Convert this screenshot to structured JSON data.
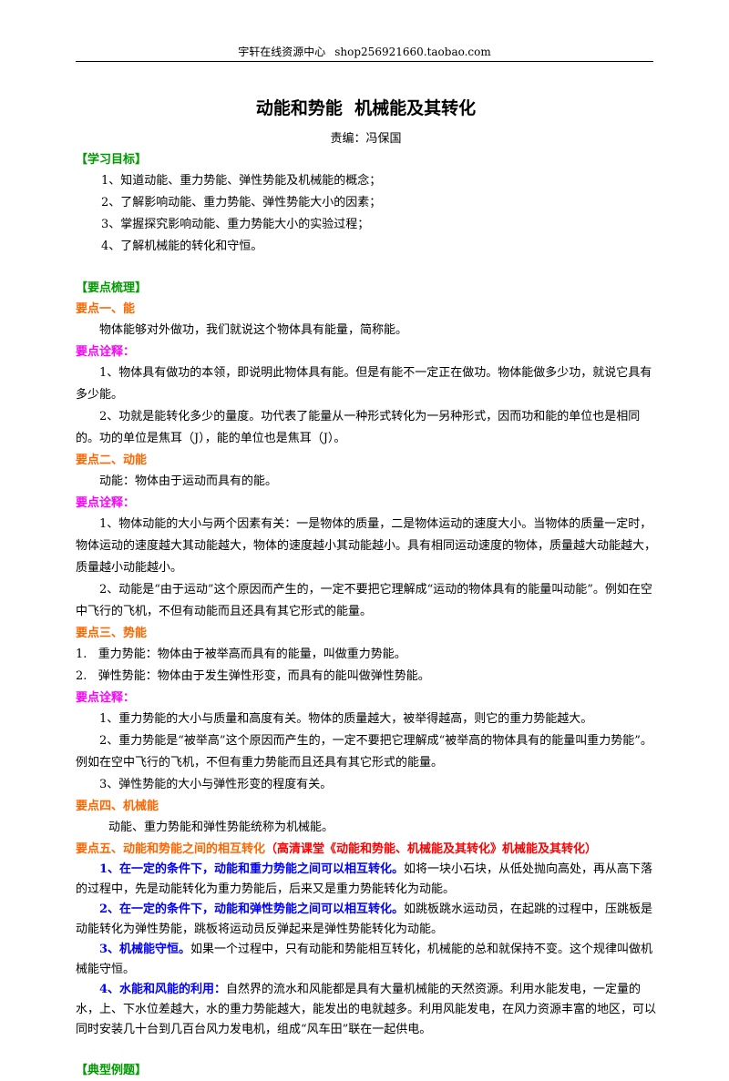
{
  "header": {
    "site": "宇轩在线资源中心",
    "shop": "shop256921660.taobao.com"
  },
  "title": "动能和势能  机械能及其转化",
  "editor": "责编：冯保国",
  "goals": {
    "heading": "【学习目标】",
    "items": [
      "1、知道动能、重力势能、弹性势能及机械能的概念；",
      "2、了解影响动能、重力势能、弹性势能大小的因素；",
      "3、掌握探究影响动能、重力势能大小的实验过程；",
      "4、了解机械能的转化和守恒。"
    ]
  },
  "summary_heading": "【要点梳理】",
  "p1": {
    "heading": "要点一、能",
    "text": "物体能够对外做功，我们就说这个物体具有能量，简称能。",
    "note_label": "要点诠释：",
    "notes": [
      "1、物体具有做功的本领，即说明此物体具有能。但是有能不一定正在做功。物体能做多少功，就说它具有多少能。",
      "2、功就是能转化多少的量度。功代表了能量从一种形式转化为一另种形式，因而功和能的单位也是相同的。功的单位是焦耳（J），能的单位也是焦耳（J）。"
    ]
  },
  "p2": {
    "heading": "要点二、动能",
    "text": "动能：物体由于运动而具有的能。",
    "note_label": "要点诠释：",
    "notes": [
      "1、物体动能的大小与两个因素有关：一是物体的质量，二是物体运动的速度大小。当物体的质量一定时，物体运动的速度越大其动能越大，物体的速度越小其动能越小。具有相同运动速度的物体，质量越大动能越大，质量越小动能越小。",
      "2、动能是“由于运动”这个原因而产生的，一定不要把它理解成“运动的物体具有的能量叫动能”。例如在空中飞行的飞机，不但有动能而且还具有其它形式的能量。"
    ]
  },
  "p3": {
    "heading": "要点三、势能",
    "defs": [
      "1.   重力势能：物体由于被举高而具有的能量，叫做重力势能。",
      "2.   弹性势能：物体由于发生弹性形变，而具有的能叫做弹性势能。"
    ],
    "note_label": "要点诠释：",
    "notes": [
      "1、重力势能的大小与质量和高度有关。物体的质量越大，被举得越高，则它的重力势能越大。",
      "2、重力势能是“被举高”这个原因而产生的，一定不要把它理解成“被举高的物体具有的能量叫重力势能”。例如在空中飞行的飞机，不但有重力势能而且还具有其它形式的能量。",
      "3、弹性势能的大小与弹性形变的程度有关。"
    ]
  },
  "p4": {
    "heading": "要点四、机械能",
    "text": "动能、重力势能和弹性势能统称为机械能。"
  },
  "p5": {
    "heading": "要点五、动能和势能之间的相互转化",
    "link": "（高清课堂《动能和势能、机械能及其转化》机械能及其转化）",
    "items": [
      {
        "bold": "1、在一定的条件下，动能和重力势能之间可以相互转化。",
        "text": "如将一块小石块，从低处抛向高处，再从高下落的过程中，先是动能转化为重力势能后，后来又是重力势能转化为动能。"
      },
      {
        "bold": "2、在一定的条件下，动能和弹性势能之间可以相互转化。",
        "text": "如跳板跳水运动员，在起跳的过程中，压跳板是动能转化为弹性势能，跳板将运动员反弹起来是弹性势能转化为动能。"
      },
      {
        "bold": "3、机械能守恒。",
        "text": "如果一个过程中，只有动能和势能相互转化，机械能的总和就保持不变。这个规律叫做机械能守恒。"
      },
      {
        "bold": "4、水能和风能的利用：",
        "text": "自然界的流水和风能都是具有大量机械能的天然资源。利用水能发电，一定量的水，上、下水位差越大，水的重力势能越大，能发出的电就越多。利用风能发电，在风力资源丰富的地区，可以同时安装几十台到几百台风力发电机，组成“风车田”联在一起供电。"
      }
    ]
  },
  "examples_heading": "【典型例题】"
}
